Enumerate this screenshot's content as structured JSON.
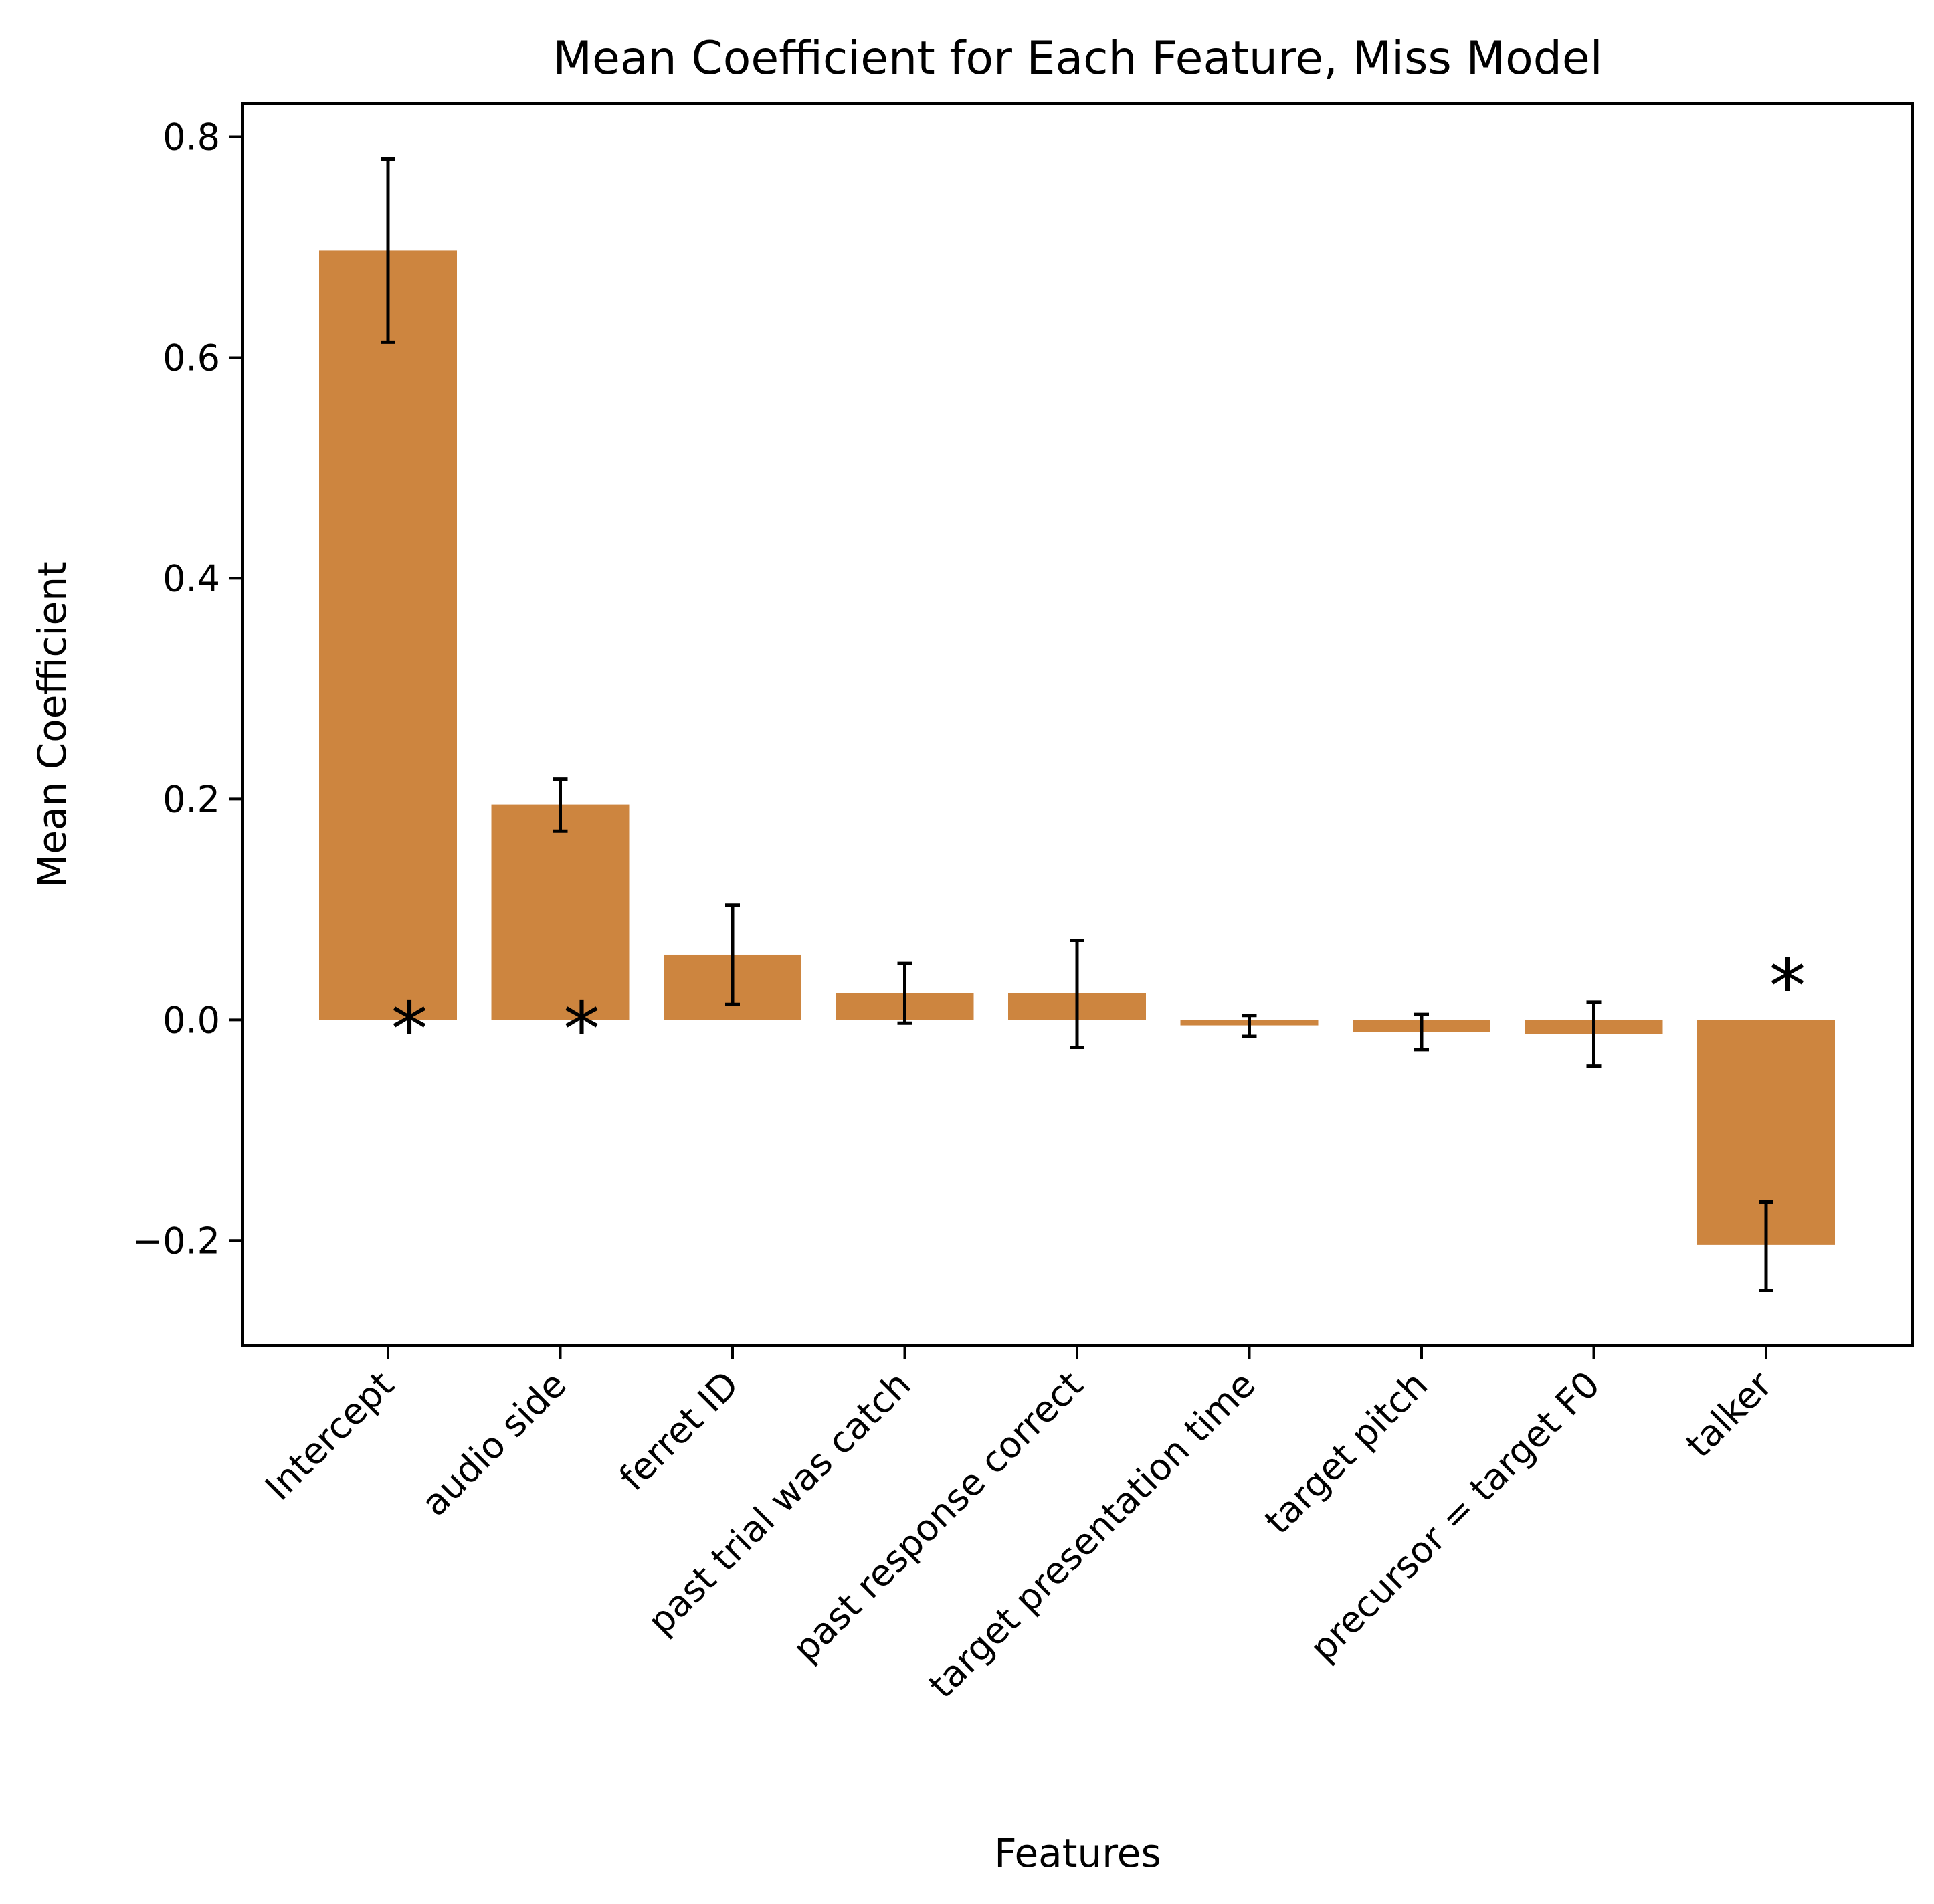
{
  "chart_data": {
    "type": "bar",
    "title": "Mean Coefficient for Each Feature, Miss Model",
    "xlabel": "Features",
    "ylabel": "Mean Coefficient",
    "categories": [
      "Intercept",
      "audio side",
      "ferret ID",
      "past trial was catch",
      "past response correct",
      "target presentation time",
      "target pitch",
      "precursor = target F0",
      "talker"
    ],
    "values": [
      0.697,
      0.195,
      0.059,
      0.024,
      0.024,
      -0.005,
      -0.011,
      -0.013,
      -0.204
    ],
    "error_low": [
      0.614,
      0.171,
      0.014,
      -0.003,
      -0.025,
      -0.015,
      -0.027,
      -0.042,
      -0.245
    ],
    "error_high": [
      0.78,
      0.218,
      0.104,
      0.051,
      0.072,
      0.004,
      0.005,
      0.016,
      -0.165
    ],
    "significant": [
      true,
      true,
      false,
      false,
      false,
      false,
      false,
      false,
      true
    ],
    "significance_marker": "*",
    "ylim": [
      -0.295,
      0.83
    ],
    "yticks": [
      -0.2,
      0.0,
      0.2,
      0.4,
      0.6,
      0.8
    ],
    "ytick_labels": [
      "−0.2",
      "0.0",
      "0.2",
      "0.4",
      "0.6",
      "0.8"
    ],
    "grid": false,
    "bar_color": "#cd853f",
    "error_color": "#000000"
  }
}
